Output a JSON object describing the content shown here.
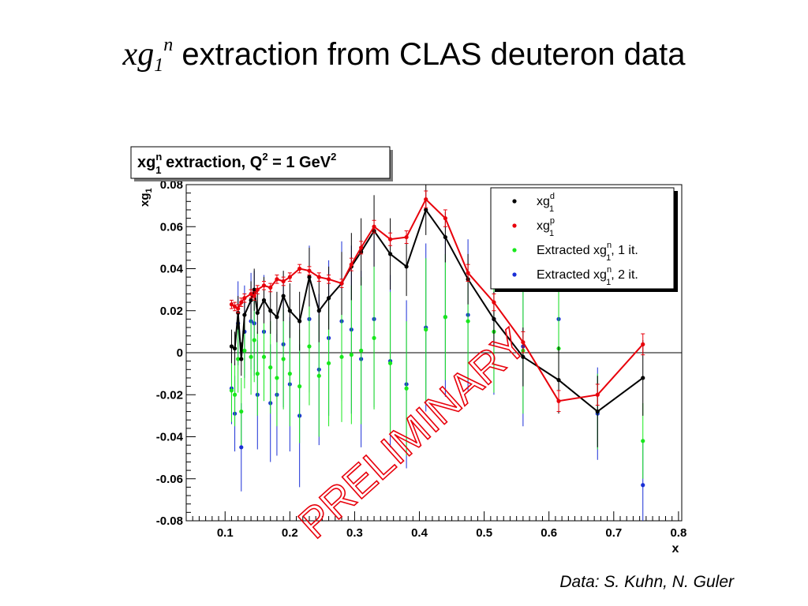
{
  "slide": {
    "title_symbol": "xg",
    "title_sub": "1",
    "title_sup": "n",
    "title_rest": " extraction from CLAS deuteron data",
    "credit": "Data: S. Kuhn, N. Guler"
  },
  "colors": {
    "black": "#000000",
    "red": "#e8000b",
    "green": "#18e81c",
    "blue": "#1a2fd6",
    "watermark": "#e8000b",
    "zero_line": "#000000"
  },
  "chart_data": {
    "type": "scatter",
    "title": "xg1n extraction, Q2 = 1 GeV2",
    "title_parts": {
      "a": "xg",
      "sup1": "n",
      "sub1": "1",
      "b": " extraction, Q",
      "sup2": "2",
      "c": " = 1 GeV",
      "sup3": "2"
    },
    "xlabel": "x",
    "ylabel": "xg1",
    "ylabel_parts": {
      "a": "xg",
      "sub": "1"
    },
    "xlim": [
      0.04,
      0.805
    ],
    "ylim": [
      -0.08,
      0.08
    ],
    "xticks": [
      "0.1",
      "0.2",
      "0.3",
      "0.4",
      "0.5",
      "0.6",
      "0.7",
      "0.8"
    ],
    "yticks": [
      "-0.08",
      "-0.06",
      "-0.04",
      "-0.02",
      "0",
      "0.02",
      "0.04",
      "0.06",
      "0.08"
    ],
    "grid": false,
    "legend_position": "top-right",
    "watermark": "PRELIMINARY",
    "series": [
      {
        "name": "xg1d",
        "name_parts": {
          "a": "xg",
          "sup": "d",
          "sub": "1",
          "b": ""
        },
        "color_key": "black",
        "line": true,
        "x": [
          0.11,
          0.115,
          0.12,
          0.125,
          0.13,
          0.14,
          0.145,
          0.15,
          0.16,
          0.17,
          0.18,
          0.19,
          0.2,
          0.215,
          0.23,
          0.245,
          0.26,
          0.28,
          0.295,
          0.31,
          0.33,
          0.355,
          0.38,
          0.41,
          0.44,
          0.475,
          0.515,
          0.56,
          0.615,
          0.675,
          0.745
        ],
        "y": [
          0.003,
          0.002,
          0.019,
          -0.003,
          0.018,
          0.025,
          0.03,
          0.019,
          0.025,
          0.02,
          0.017,
          0.027,
          0.02,
          0.015,
          0.036,
          0.02,
          0.026,
          0.033,
          0.041,
          0.048,
          0.058,
          0.047,
          0.041,
          0.068,
          0.055,
          0.035,
          0.016,
          -0.002,
          -0.013,
          -0.028,
          -0.012
        ],
        "err": [
          0.008,
          0.008,
          0.008,
          0.008,
          0.009,
          0.009,
          0.01,
          0.01,
          0.011,
          0.011,
          0.012,
          0.012,
          0.013,
          0.014,
          0.014,
          0.015,
          0.015,
          0.015,
          0.016,
          0.016,
          0.017,
          0.017,
          0.014,
          0.012,
          0.012,
          0.012,
          0.013,
          0.014,
          0.016,
          0.017,
          0.018
        ]
      },
      {
        "name": "xg1p",
        "name_parts": {
          "a": "xg",
          "sup": "p",
          "sub": "1",
          "b": ""
        },
        "color_key": "red",
        "line": true,
        "x": [
          0.11,
          0.115,
          0.12,
          0.125,
          0.13,
          0.14,
          0.145,
          0.15,
          0.16,
          0.17,
          0.18,
          0.19,
          0.2,
          0.215,
          0.23,
          0.245,
          0.26,
          0.28,
          0.295,
          0.31,
          0.33,
          0.355,
          0.38,
          0.41,
          0.44,
          0.475,
          0.515,
          0.56,
          0.615,
          0.675,
          0.745
        ],
        "y": [
          0.023,
          0.022,
          0.021,
          0.024,
          0.026,
          0.028,
          0.027,
          0.03,
          0.032,
          0.031,
          0.035,
          0.034,
          0.036,
          0.04,
          0.039,
          0.036,
          0.035,
          0.033,
          0.042,
          0.05,
          0.06,
          0.054,
          0.055,
          0.073,
          0.064,
          0.038,
          0.024,
          0.005,
          -0.023,
          -0.02,
          0.004
        ],
        "err": [
          0.002,
          0.002,
          0.002,
          0.002,
          0.002,
          0.002,
          0.002,
          0.002,
          0.002,
          0.002,
          0.002,
          0.002,
          0.002,
          0.002,
          0.002,
          0.002,
          0.002,
          0.002,
          0.003,
          0.003,
          0.003,
          0.003,
          0.003,
          0.004,
          0.004,
          0.004,
          0.004,
          0.005,
          0.005,
          0.005,
          0.005
        ]
      },
      {
        "name": "Extracted xg1n, 1 it.",
        "name_parts": {
          "a": "Extracted xg",
          "sup": "n",
          "sub": "1",
          "b": ", 1 it."
        },
        "color_key": "green",
        "line": false,
        "x": [
          0.11,
          0.115,
          0.12,
          0.125,
          0.13,
          0.14,
          0.145,
          0.15,
          0.16,
          0.17,
          0.18,
          0.19,
          0.2,
          0.215,
          0.23,
          0.245,
          0.26,
          0.28,
          0.295,
          0.31,
          0.33,
          0.355,
          0.38,
          0.41,
          0.44,
          0.475,
          0.515,
          0.56,
          0.615,
          0.675,
          0.745
        ],
        "y": [
          -0.018,
          -0.02,
          -0.003,
          -0.028,
          0.001,
          -0.002,
          0.006,
          -0.01,
          -0.002,
          -0.007,
          -0.012,
          -0.003,
          -0.01,
          -0.016,
          0.003,
          -0.011,
          -0.005,
          -0.002,
          -0.001,
          0.001,
          0.007,
          -0.005,
          -0.017,
          0.011,
          0.017,
          0.015,
          0.01,
          0.001,
          0.002,
          -0.028,
          -0.042
        ],
        "err": [
          0.015,
          0.015,
          0.016,
          0.016,
          0.018,
          0.018,
          0.02,
          0.02,
          0.021,
          0.022,
          0.023,
          0.024,
          0.025,
          0.027,
          0.028,
          0.029,
          0.03,
          0.031,
          0.033,
          0.035,
          0.034,
          0.034,
          0.032,
          0.034,
          0.03,
          0.028,
          0.029,
          0.03,
          0.027,
          0.018,
          0.018
        ]
      },
      {
        "name": "Extracted xg1n, 2 it.",
        "name_parts": {
          "a": "Extracted xg",
          "sup": "n",
          "sub": "1",
          "b": ", 2 it."
        },
        "color_key": "blue",
        "line": false,
        "x": [
          0.11,
          0.115,
          0.12,
          0.125,
          0.13,
          0.14,
          0.145,
          0.15,
          0.16,
          0.17,
          0.18,
          0.19,
          0.2,
          0.215,
          0.23,
          0.245,
          0.26,
          0.28,
          0.295,
          0.31,
          0.33,
          0.355,
          0.38,
          0.41,
          0.44,
          0.475,
          0.515,
          0.56,
          0.615,
          0.675,
          0.745
        ],
        "y": [
          -0.017,
          -0.029,
          0.014,
          -0.045,
          0.01,
          0.015,
          0.014,
          -0.02,
          0.01,
          -0.024,
          -0.02,
          0.004,
          -0.015,
          -0.03,
          0.016,
          -0.008,
          0.007,
          0.015,
          0.011,
          -0.003,
          0.016,
          -0.004,
          -0.015,
          0.012,
          0.017,
          0.018,
          0.016,
          0.003,
          0.016,
          -0.029,
          -0.063
        ],
        "err": [
          0.017,
          0.018,
          0.02,
          0.021,
          0.022,
          0.023,
          0.025,
          0.026,
          0.027,
          0.028,
          0.029,
          0.03,
          0.032,
          0.034,
          0.035,
          0.036,
          0.037,
          0.038,
          0.04,
          0.042,
          0.042,
          0.041,
          0.04,
          0.04,
          0.038,
          0.036,
          0.036,
          0.038,
          0.036,
          0.022,
          0.022
        ]
      }
    ]
  }
}
